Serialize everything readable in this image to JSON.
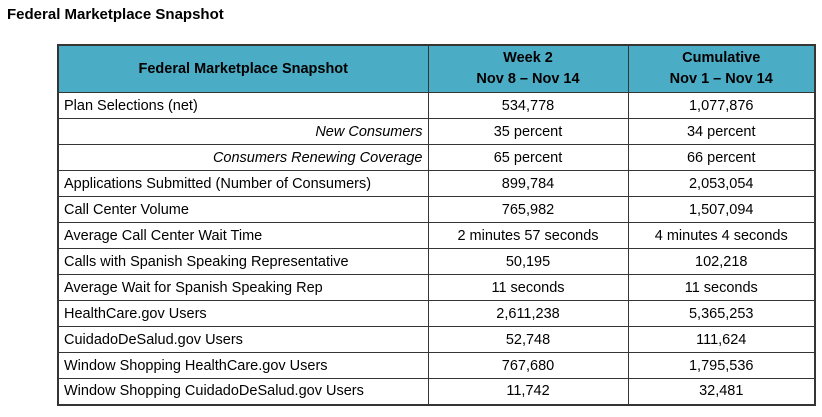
{
  "page_title": "Federal Marketplace Snapshot",
  "colors": {
    "header_bg": "#4BACC6",
    "border": "#353535",
    "text": "#000000"
  },
  "table": {
    "header": {
      "metric_label": "Federal Marketplace Snapshot",
      "week2": {
        "line1": "Week 2",
        "line2": "Nov 8 – Nov 14"
      },
      "cumulative": {
        "line1": "Cumulative",
        "line2": "Nov 1 – Nov 14"
      }
    },
    "rows": [
      {
        "metric": "Plan Selections (net)",
        "week2": "534,778",
        "cumulative": "1,077,876",
        "style": "normal"
      },
      {
        "metric": "New Consumers",
        "week2": "35 percent",
        "cumulative": "34 percent",
        "style": "sub"
      },
      {
        "metric": "Consumers Renewing Coverage",
        "week2": "65 percent",
        "cumulative": "66 percent",
        "style": "sub"
      },
      {
        "metric": "Applications Submitted (Number of Consumers)",
        "week2": "899,784",
        "cumulative": "2,053,054",
        "style": "normal"
      },
      {
        "metric": "Call Center Volume",
        "week2": "765,982",
        "cumulative": "1,507,094",
        "style": "normal"
      },
      {
        "metric": "Average Call Center Wait Time",
        "week2": "2 minutes 57 seconds",
        "cumulative": "4 minutes 4 seconds",
        "style": "normal"
      },
      {
        "metric": "Calls with Spanish Speaking Representative",
        "week2": "50,195",
        "cumulative": "102,218",
        "style": "normal"
      },
      {
        "metric": "Average Wait for Spanish Speaking Rep",
        "week2": "11 seconds",
        "cumulative": "11 seconds",
        "style": "normal"
      },
      {
        "metric": "HealthCare.gov Users",
        "week2": "2,611,238",
        "cumulative": "5,365,253",
        "style": "normal"
      },
      {
        "metric": "CuidadoDeSalud.gov Users",
        "week2": "52,748",
        "cumulative": "111,624",
        "style": "normal"
      },
      {
        "metric": "Window Shopping HealthCare.gov Users",
        "week2": "767,680",
        "cumulative": "1,795,536",
        "style": "normal"
      },
      {
        "metric": "Window Shopping CuidadoDeSalud.gov Users",
        "week2": "11,742",
        "cumulative": "32,481",
        "style": "normal"
      }
    ]
  }
}
